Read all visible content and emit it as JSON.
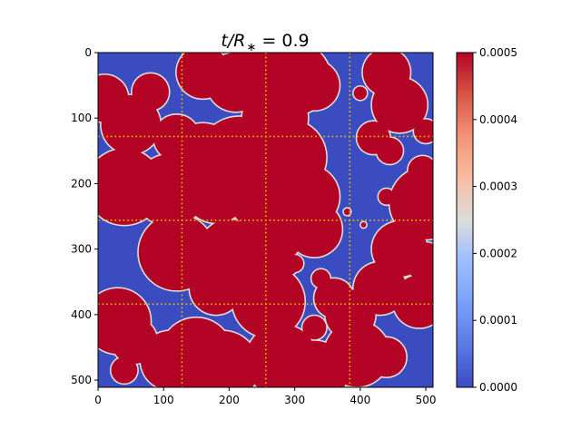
{
  "chart_data": {
    "type": "heatmap",
    "title_prefix": "t/R",
    "title_subscript": "∗",
    "title_suffix": " = 0.9",
    "colormap": "coolwarm",
    "colors": {
      "low": "#3b4cc0",
      "high": "#b40426",
      "guide_lines": "#e8c000"
    },
    "x_range": [
      0,
      511
    ],
    "y_range": [
      511,
      0
    ],
    "x_ticks": [
      "0",
      "100",
      "200",
      "300",
      "400",
      "500"
    ],
    "x_tick_values": [
      0,
      100,
      200,
      300,
      400,
      500
    ],
    "y_ticks": [
      "0",
      "100",
      "200",
      "300",
      "400",
      "500"
    ],
    "y_tick_values": [
      0,
      100,
      200,
      300,
      400,
      500
    ],
    "guide_lines_at": [
      128,
      256,
      384
    ],
    "colorbar": {
      "range": [
        0,
        0.0005
      ],
      "ticks": [
        "0.0000",
        "0.0001",
        "0.0002",
        "0.0003",
        "0.0004",
        "0.0005"
      ],
      "tick_values": [
        0,
        0.0001,
        0.0002,
        0.0003,
        0.0004,
        0.0005
      ]
    },
    "regions": [
      {
        "cx": 10,
        "cy": 70,
        "r": 36
      },
      {
        "cx": 50,
        "cy": 110,
        "r": 45
      },
      {
        "cx": 80,
        "cy": 60,
        "r": 28
      },
      {
        "cx": 120,
        "cy": 130,
        "r": 35
      },
      {
        "cx": 160,
        "cy": 30,
        "r": 40
      },
      {
        "cx": 210,
        "cy": 45,
        "r": 45
      },
      {
        "cx": 260,
        "cy": 10,
        "r": 48
      },
      {
        "cx": 300,
        "cy": 40,
        "r": 55
      },
      {
        "cx": 330,
        "cy": 50,
        "r": 38
      },
      {
        "cx": 270,
        "cy": 100,
        "r": 50
      },
      {
        "cx": 160,
        "cy": 160,
        "r": 52
      },
      {
        "cx": 215,
        "cy": 160,
        "r": 62
      },
      {
        "cx": 290,
        "cy": 160,
        "r": 58
      },
      {
        "cx": 40,
        "cy": 205,
        "r": 58
      },
      {
        "cx": 110,
        "cy": 210,
        "r": 55
      },
      {
        "cx": 180,
        "cy": 210,
        "r": 50
      },
      {
        "cx": 260,
        "cy": 210,
        "r": 65
      },
      {
        "cx": 320,
        "cy": 220,
        "r": 48
      },
      {
        "cx": 330,
        "cy": 270,
        "r": 42
      },
      {
        "cx": 270,
        "cy": 275,
        "r": 45
      },
      {
        "cx": 200,
        "cy": 300,
        "r": 45
      },
      {
        "cx": 120,
        "cy": 305,
        "r": 58
      },
      {
        "cx": 240,
        "cy": 330,
        "r": 50
      },
      {
        "cx": 180,
        "cy": 360,
        "r": 40
      },
      {
        "cx": 260,
        "cy": 380,
        "r": 55
      },
      {
        "cx": 290,
        "cy": 325,
        "r": 15
      },
      {
        "cx": 30,
        "cy": 410,
        "r": 50
      },
      {
        "cx": 55,
        "cy": 440,
        "r": 35
      },
      {
        "cx": 150,
        "cy": 460,
        "r": 55
      },
      {
        "cx": 190,
        "cy": 480,
        "r": 55
      },
      {
        "cx": 110,
        "cy": 470,
        "r": 45
      },
      {
        "cx": 280,
        "cy": 470,
        "r": 55
      },
      {
        "cx": 330,
        "cy": 490,
        "r": 50
      },
      {
        "cx": 340,
        "cy": 345,
        "r": 14
      },
      {
        "cx": 330,
        "cy": 420,
        "r": 18
      },
      {
        "cx": 360,
        "cy": 375,
        "r": 30
      },
      {
        "cx": 385,
        "cy": 400,
        "r": 38
      },
      {
        "cx": 395,
        "cy": 460,
        "r": 50
      },
      {
        "cx": 430,
        "cy": 360,
        "r": 40
      },
      {
        "cx": 460,
        "cy": 300,
        "r": 42
      },
      {
        "cx": 490,
        "cy": 380,
        "r": 40
      },
      {
        "cx": 500,
        "cy": 320,
        "r": 30
      },
      {
        "cx": 440,
        "cy": 465,
        "r": 30
      },
      {
        "cx": 440,
        "cy": 30,
        "r": 36
      },
      {
        "cx": 460,
        "cy": 80,
        "r": 42
      },
      {
        "cx": 420,
        "cy": 130,
        "r": 25
      },
      {
        "cx": 445,
        "cy": 150,
        "r": 20
      },
      {
        "cx": 500,
        "cy": 120,
        "r": 18
      },
      {
        "cx": 500,
        "cy": 230,
        "r": 55
      },
      {
        "cx": 495,
        "cy": 180,
        "r": 22
      },
      {
        "cx": 440,
        "cy": 220,
        "r": 12
      },
      {
        "cx": 400,
        "cy": 62,
        "r": 10
      },
      {
        "cx": 300,
        "cy": 322,
        "r": 13
      },
      {
        "cx": 40,
        "cy": 485,
        "r": 20
      },
      {
        "cx": 380,
        "cy": 243,
        "r": 5
      },
      {
        "cx": 405,
        "cy": 263,
        "r": 4
      }
    ]
  }
}
